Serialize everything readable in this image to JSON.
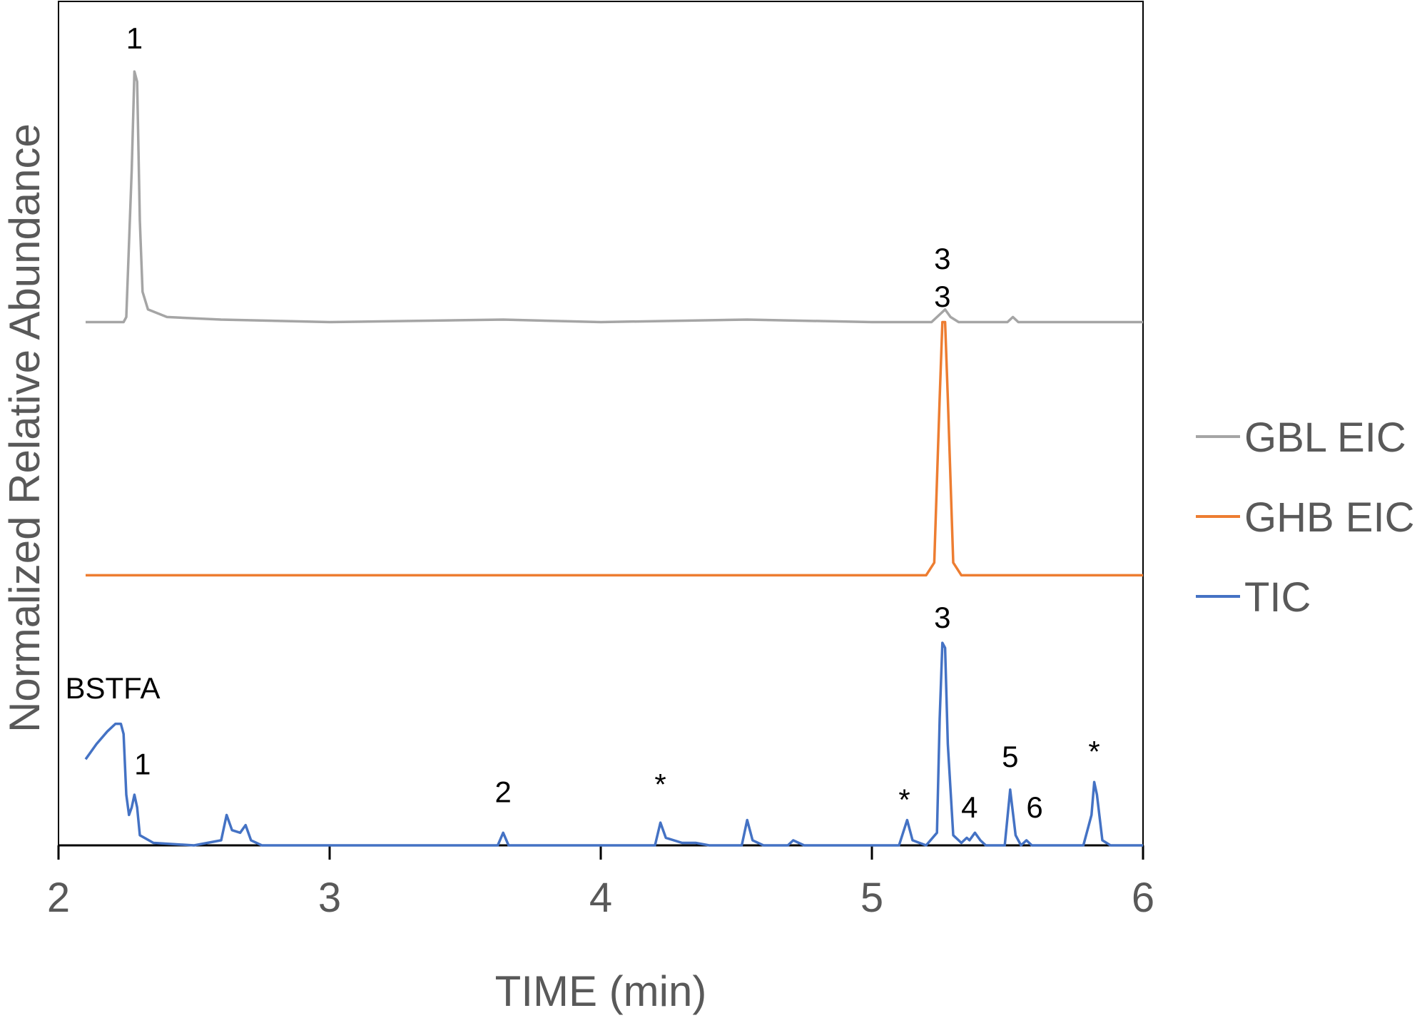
{
  "chart_data": {
    "type": "line",
    "title": "",
    "xlabel": "TIME (min)",
    "ylabel": "Normalized Relative Abundance",
    "xlim": [
      2,
      6
    ],
    "x_ticks": [
      "2",
      "3",
      "4",
      "5",
      "6"
    ],
    "x_tick_values": [
      2,
      3,
      4,
      5,
      6
    ],
    "y_ticks_shown": false,
    "grid": false,
    "legend_position": "right",
    "series": [
      {
        "name": "GBL EIC",
        "color": "#A5A5A5",
        "baseline": 0.62,
        "points": [
          [
            2.1,
            0.0
          ],
          [
            2.24,
            0.0
          ],
          [
            2.25,
            0.02
          ],
          [
            2.27,
            0.6
          ],
          [
            2.28,
            0.99
          ],
          [
            2.29,
            0.95
          ],
          [
            2.3,
            0.4
          ],
          [
            2.31,
            0.12
          ],
          [
            2.33,
            0.05
          ],
          [
            2.4,
            0.02
          ],
          [
            2.6,
            0.01
          ],
          [
            3.0,
            0.0
          ],
          [
            3.64,
            0.01
          ],
          [
            4.0,
            0.0
          ],
          [
            4.54,
            0.01
          ],
          [
            5.0,
            0.0
          ],
          [
            5.22,
            0.0
          ],
          [
            5.25,
            0.03
          ],
          [
            5.27,
            0.05
          ],
          [
            5.29,
            0.02
          ],
          [
            5.32,
            0.0
          ],
          [
            5.5,
            0.0
          ],
          [
            5.52,
            0.02
          ],
          [
            5.54,
            0.0
          ],
          [
            6.0,
            0.0
          ]
        ],
        "labels": [
          {
            "text": "1",
            "x": 2.28,
            "y": 1.08
          },
          {
            "text": "3",
            "x": 5.26,
            "y": 0.21
          }
        ]
      },
      {
        "name": "GHB EIC",
        "color": "#ED7D31",
        "baseline": 0.32,
        "points": [
          [
            2.1,
            0.0
          ],
          [
            5.2,
            0.0
          ],
          [
            5.23,
            0.05
          ],
          [
            5.25,
            0.7
          ],
          [
            5.26,
            1.0
          ],
          [
            5.27,
            1.0
          ],
          [
            5.28,
            0.7
          ],
          [
            5.3,
            0.05
          ],
          [
            5.33,
            0.0
          ],
          [
            6.0,
            0.0
          ]
        ],
        "labels": [
          {
            "text": "3",
            "x": 5.26,
            "y": 1.06
          }
        ]
      },
      {
        "name": "TIC",
        "color": "#4472C4",
        "baseline": 0.0,
        "points": [
          [
            2.1,
            0.34
          ],
          [
            2.14,
            0.4
          ],
          [
            2.18,
            0.45
          ],
          [
            2.21,
            0.48
          ],
          [
            2.23,
            0.48
          ],
          [
            2.24,
            0.44
          ],
          [
            2.25,
            0.2
          ],
          [
            2.26,
            0.12
          ],
          [
            2.27,
            0.15
          ],
          [
            2.28,
            0.2
          ],
          [
            2.29,
            0.15
          ],
          [
            2.3,
            0.04
          ],
          [
            2.35,
            0.01
          ],
          [
            2.5,
            0.0
          ],
          [
            2.6,
            0.02
          ],
          [
            2.62,
            0.12
          ],
          [
            2.64,
            0.06
          ],
          [
            2.67,
            0.05
          ],
          [
            2.69,
            0.08
          ],
          [
            2.71,
            0.02
          ],
          [
            2.75,
            0.0
          ],
          [
            3.0,
            0.0
          ],
          [
            3.62,
            0.0
          ],
          [
            3.64,
            0.05
          ],
          [
            3.66,
            0.0
          ],
          [
            4.2,
            0.0
          ],
          [
            4.22,
            0.09
          ],
          [
            4.24,
            0.03
          ],
          [
            4.3,
            0.01
          ],
          [
            4.35,
            0.01
          ],
          [
            4.4,
            0.0
          ],
          [
            4.52,
            0.0
          ],
          [
            4.54,
            0.1
          ],
          [
            4.56,
            0.02
          ],
          [
            4.6,
            0.0
          ],
          [
            4.69,
            0.0
          ],
          [
            4.71,
            0.02
          ],
          [
            4.75,
            0.0
          ],
          [
            5.1,
            0.0
          ],
          [
            5.13,
            0.1
          ],
          [
            5.15,
            0.02
          ],
          [
            5.2,
            0.0
          ],
          [
            5.24,
            0.05
          ],
          [
            5.25,
            0.5
          ],
          [
            5.26,
            0.8
          ],
          [
            5.27,
            0.78
          ],
          [
            5.28,
            0.4
          ],
          [
            5.3,
            0.04
          ],
          [
            5.33,
            0.01
          ],
          [
            5.35,
            0.03
          ],
          [
            5.36,
            0.02
          ],
          [
            5.38,
            0.05
          ],
          [
            5.4,
            0.02
          ],
          [
            5.42,
            0.0
          ],
          [
            5.49,
            0.0
          ],
          [
            5.51,
            0.22
          ],
          [
            5.53,
            0.04
          ],
          [
            5.55,
            0.0
          ],
          [
            5.57,
            0.02
          ],
          [
            5.59,
            0.0
          ],
          [
            5.78,
            0.0
          ],
          [
            5.81,
            0.12
          ],
          [
            5.82,
            0.25
          ],
          [
            5.83,
            0.2
          ],
          [
            5.85,
            0.02
          ],
          [
            5.88,
            0.0
          ],
          [
            6.0,
            0.0
          ]
        ],
        "labels": [
          {
            "text": "BSTFA",
            "x": 2.2,
            "y": 0.58
          },
          {
            "text": "1",
            "x": 2.31,
            "y": 0.28
          },
          {
            "text": "2",
            "x": 3.64,
            "y": 0.17
          },
          {
            "text": "*",
            "x": 4.22,
            "y": 0.2
          },
          {
            "text": "*",
            "x": 5.12,
            "y": 0.14
          },
          {
            "text": "3",
            "x": 5.26,
            "y": 0.86
          },
          {
            "text": "4",
            "x": 5.36,
            "y": 0.11
          },
          {
            "text": "5",
            "x": 5.51,
            "y": 0.31
          },
          {
            "text": "6",
            "x": 5.6,
            "y": 0.11
          },
          {
            "text": "*",
            "x": 5.82,
            "y": 0.33
          }
        ]
      }
    ]
  }
}
